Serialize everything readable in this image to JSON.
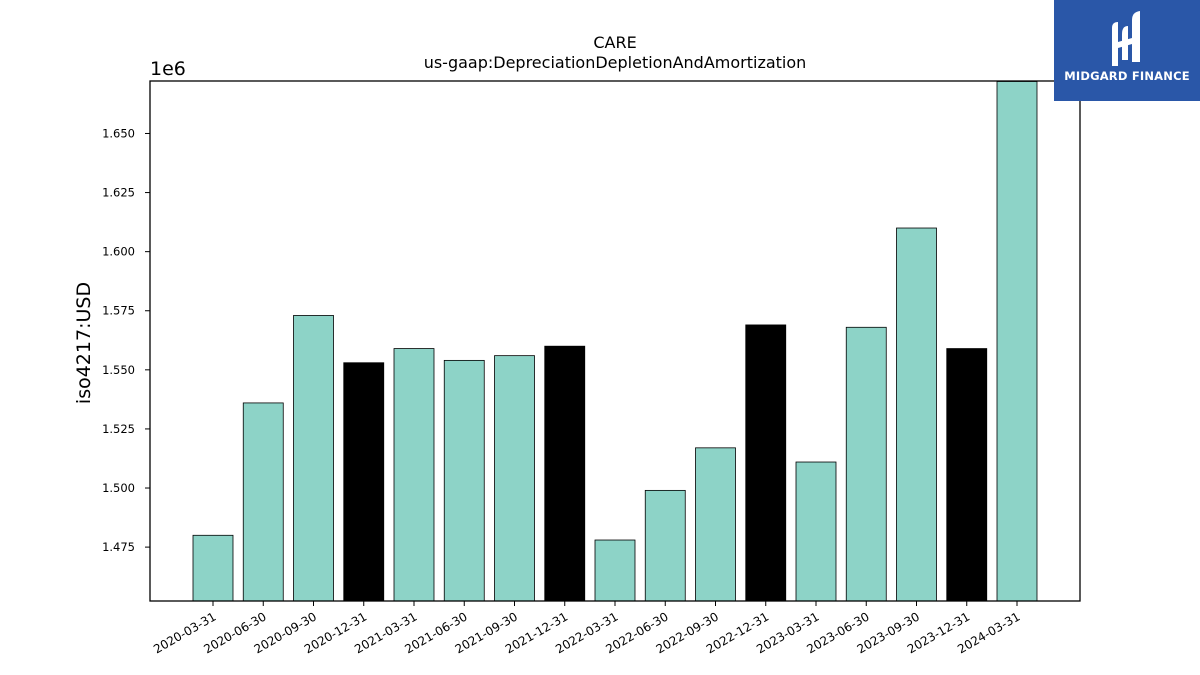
{
  "chart_data": {
    "type": "bar",
    "title": "CARE",
    "subtitle": "us-gaap:DepreciationDepletionAndAmortization",
    "ylabel": "iso4217:USD",
    "xlabel": "",
    "offset_label": "1e6",
    "ylim": [
      1.4522,
      1.6722
    ],
    "yticks": [
      "1.475",
      "1.500",
      "1.525",
      "1.550",
      "1.575",
      "1.600",
      "1.625",
      "1.650"
    ],
    "categories": [
      "2020-03-31",
      "2020-06-30",
      "2020-09-30",
      "2020-12-31",
      "2021-03-31",
      "2021-06-30",
      "2021-09-30",
      "2021-12-31",
      "2022-03-31",
      "2022-06-30",
      "2022-09-30",
      "2022-12-31",
      "2023-03-31",
      "2023-06-30",
      "2023-09-30",
      "2023-12-31",
      "2024-03-31"
    ],
    "values": [
      1.48,
      1.536,
      1.573,
      1.553,
      1.559,
      1.554,
      1.556,
      1.56,
      1.478,
      1.499,
      1.517,
      1.569,
      1.511,
      1.568,
      1.61,
      1.559,
      1.672
    ],
    "colors": {
      "quarter": "#8dd3c7",
      "year_end": "#000000"
    },
    "bar_color_keys": [
      "quarter",
      "quarter",
      "quarter",
      "year_end",
      "quarter",
      "quarter",
      "quarter",
      "year_end",
      "quarter",
      "quarter",
      "quarter",
      "year_end",
      "quarter",
      "quarter",
      "quarter",
      "year_end",
      "quarter"
    ],
    "grid": false,
    "legend": "none"
  },
  "logo": {
    "text": "MIDGARD FINANCE",
    "background": "#2a57a8"
  }
}
